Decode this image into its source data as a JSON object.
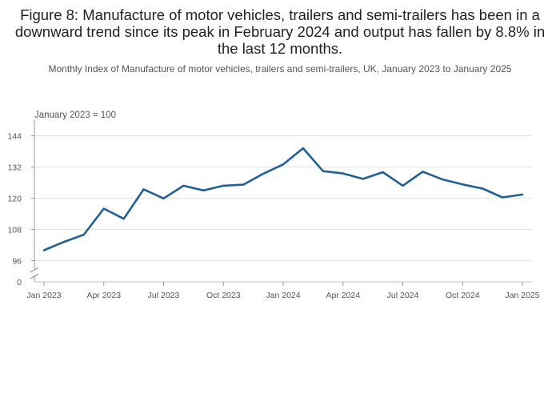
{
  "chart_data": {
    "type": "line",
    "title": "Figure 8: Manufacture of motor vehicles, trailers and semi-trailers has been in a downward trend since its peak in February 2024 and output has fallen by 8.8% in the last 12 months.",
    "subtitle": "Monthly Index of Manufacture of motor vehicles, trailers and semi-trailers, UK, January 2023 to January 2025",
    "annotation": "January 2023 = 100",
    "xlabel": "",
    "ylabel": "",
    "grid": true,
    "axis_break": true,
    "ylim": [
      90,
      150
    ],
    "y_ticks": [
      96,
      108,
      120,
      132,
      144
    ],
    "y_zero_label": "0",
    "x_tick_labels": [
      "Jan 2023",
      "Apr 2023",
      "Jul 2023",
      "Oct 2023",
      "Jan 2024",
      "Apr 2024",
      "Jul 2024",
      "Oct 2024",
      "Jan 2025"
    ],
    "x_tick_indices": [
      0,
      3,
      6,
      9,
      12,
      15,
      18,
      21,
      24
    ],
    "series": [
      {
        "name": "Manufacture of motor vehicles, trailers and semi-trailers",
        "color": "#206095",
        "x": [
          "Jan 2023",
          "Feb 2023",
          "Mar 2023",
          "Apr 2023",
          "May 2023",
          "Jun 2023",
          "Jul 2023",
          "Aug 2023",
          "Sep 2023",
          "Oct 2023",
          "Nov 2023",
          "Dec 2023",
          "Jan 2024",
          "Feb 2024",
          "Mar 2024",
          "Apr 2024",
          "May 2024",
          "Jun 2024",
          "Jul 2024",
          "Aug 2024",
          "Sep 2024",
          "Oct 2024",
          "Nov 2024",
          "Dec 2024",
          "Jan 2025"
        ],
        "values": [
          100.0,
          103.2,
          106.0,
          116.0,
          112.1,
          123.4,
          119.9,
          124.8,
          123.0,
          124.8,
          125.2,
          129.4,
          133.0,
          139.2,
          130.4,
          129.5,
          127.4,
          130.0,
          124.8,
          130.2,
          127.2,
          125.3,
          123.7,
          120.3,
          121.4
        ]
      }
    ]
  }
}
